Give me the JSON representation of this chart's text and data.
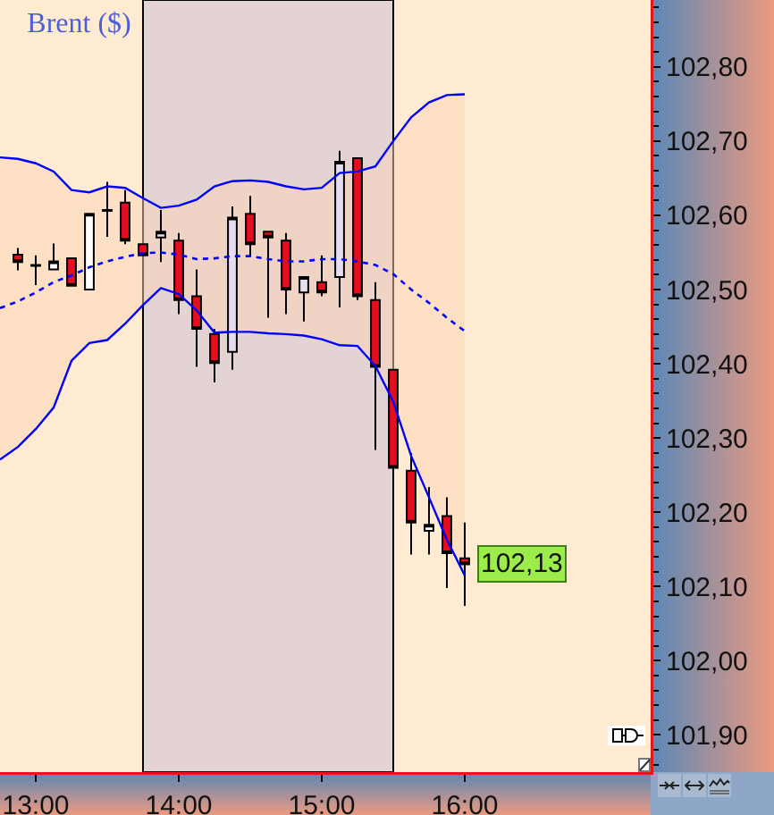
{
  "chart_data": {
    "type": "candlestick",
    "title": "Brent ($)",
    "x": [
      12.875,
      13.0,
      13.125,
      13.25,
      13.375,
      13.5,
      13.625,
      13.75,
      13.875,
      14.0,
      14.125,
      14.25,
      14.375,
      14.5,
      14.625,
      14.75,
      14.875,
      15.0,
      15.125,
      15.25,
      15.375,
      15.5,
      15.625,
      15.75,
      15.875,
      16.0
    ],
    "ohlc": [
      [
        102.547,
        102.556,
        102.526,
        102.537
      ],
      [
        102.532,
        102.546,
        102.506,
        102.533
      ],
      [
        102.527,
        102.562,
        102.527,
        102.538
      ],
      [
        102.542,
        102.542,
        102.505,
        102.505
      ],
      [
        102.5,
        102.602,
        102.5,
        102.602
      ],
      [
        102.606,
        102.645,
        102.571,
        102.607
      ],
      [
        102.617,
        102.634,
        102.561,
        102.566
      ],
      [
        102.561,
        102.561,
        102.546,
        102.546
      ],
      [
        102.57,
        102.607,
        102.537,
        102.578
      ],
      [
        102.566,
        102.576,
        102.467,
        102.486
      ],
      [
        102.491,
        102.527,
        102.396,
        102.447
      ],
      [
        102.44,
        102.447,
        102.375,
        102.401
      ],
      [
        102.416,
        102.612,
        102.392,
        102.597
      ],
      [
        102.602,
        102.626,
        102.544,
        102.561
      ],
      [
        102.578,
        102.578,
        102.462,
        102.57
      ],
      [
        102.566,
        102.576,
        102.467,
        102.5
      ],
      [
        102.496,
        102.517,
        102.457,
        102.517
      ],
      [
        102.51,
        102.546,
        102.491,
        102.496
      ],
      [
        102.517,
        102.687,
        102.476,
        102.672
      ],
      [
        102.677,
        102.677,
        102.486,
        102.491
      ],
      [
        102.486,
        102.51,
        102.284,
        102.396
      ],
      [
        102.392,
        102.392,
        102.256,
        102.26
      ],
      [
        102.256,
        102.28,
        102.143,
        102.186
      ],
      [
        102.175,
        102.234,
        102.143,
        102.183
      ],
      [
        102.195,
        102.22,
        102.098,
        102.145
      ],
      [
        102.138,
        102.186,
        102.074,
        102.13
      ]
    ],
    "colors": [
      "#e60e1e",
      "#000000",
      "#ffffff",
      "#e60e1e",
      "#ffffff",
      "#000000",
      "#e60e1e",
      "#e60e1e",
      "#e6def0",
      "#e60e1e",
      "#e60e1e",
      "#e60e1e",
      "#e6def0",
      "#e60e1e",
      "#e60e1e",
      "#e60e1e",
      "#e6def0",
      "#e60e1e",
      "#e6def0",
      "#e60e1e",
      "#e60e1e",
      "#e60e1e",
      "#e60e1e",
      "#ffffff",
      "#e60e1e",
      "#e60e1e"
    ],
    "series": [
      {
        "type": "line",
        "color": "#0000ff",
        "line_style": "dotted",
        "x": [
          12.75,
          12.875,
          13.0,
          13.125,
          13.25,
          13.375,
          13.5,
          13.625,
          13.75,
          13.875,
          14.0,
          14.125,
          14.25,
          14.375,
          14.5,
          14.625,
          14.75,
          14.875,
          15.0,
          15.125,
          15.25,
          15.375,
          15.5,
          15.625,
          15.75,
          15.875,
          16.0
        ],
        "values": [
          102.475,
          102.484,
          102.496,
          102.51,
          102.519,
          102.53,
          102.538,
          102.544,
          102.549,
          102.55,
          102.547,
          102.541,
          102.542,
          102.545,
          102.545,
          102.541,
          102.538,
          102.538,
          102.541,
          102.541,
          102.538,
          102.533,
          102.521,
          102.5,
          102.482,
          102.462,
          102.444
        ],
        "upper": [
          102.678,
          102.676,
          102.67,
          102.659,
          102.634,
          102.631,
          102.639,
          102.637,
          102.623,
          102.61,
          102.613,
          102.621,
          102.639,
          102.646,
          102.647,
          102.645,
          102.639,
          102.635,
          102.637,
          102.657,
          102.659,
          102.666,
          102.7,
          102.732,
          102.752,
          102.762,
          102.763
        ],
        "lower": [
          102.271,
          102.288,
          102.312,
          102.341,
          102.404,
          102.428,
          102.432,
          102.454,
          102.479,
          102.502,
          102.494,
          102.472,
          102.442,
          102.443,
          102.443,
          102.441,
          102.44,
          102.438,
          102.433,
          102.425,
          102.424,
          102.397,
          102.349,
          102.276,
          102.22,
          102.163,
          102.115
        ]
      },
      {
        "type": "line",
        "color": "#0000ff",
        "line_style": "solid",
        "x": [
          12.75,
          12.875,
          13.0,
          13.125,
          13.25,
          13.375,
          13.5,
          13.625,
          13.75,
          13.875,
          14.0,
          14.125,
          14.25,
          14.375,
          14.5,
          14.625,
          14.75,
          14.875,
          15.0,
          15.125,
          15.25,
          15.375,
          15.5,
          15.625,
          15.75,
          15.875,
          16.0
        ],
        "values": [
          102.678,
          102.676,
          102.67,
          102.659,
          102.634,
          102.631,
          102.639,
          102.637,
          102.623,
          102.61,
          102.613,
          102.621,
          102.639,
          102.646,
          102.647,
          102.645,
          102.639,
          102.635,
          102.637,
          102.657,
          102.659,
          102.666,
          102.7,
          102.732,
          102.752,
          102.762,
          102.763
        ]
      },
      {
        "type": "line",
        "color": "#0000ff",
        "line_style": "solid",
        "x": [
          12.75,
          12.875,
          13.0,
          13.125,
          13.25,
          13.375,
          13.5,
          13.625,
          13.75,
          13.875,
          14.0,
          14.125,
          14.25,
          14.375,
          14.5,
          14.625,
          14.75,
          14.875,
          15.0,
          15.125,
          15.25,
          15.375,
          15.5,
          15.625,
          15.75,
          15.875,
          16.0
        ],
        "values": [
          102.271,
          102.288,
          102.312,
          102.341,
          102.404,
          102.428,
          102.432,
          102.454,
          102.479,
          102.502,
          102.494,
          102.472,
          102.442,
          102.443,
          102.443,
          102.441,
          102.44,
          102.438,
          102.433,
          102.425,
          102.424,
          102.397,
          102.349,
          102.276,
          102.22,
          102.163,
          102.115
        ]
      }
    ],
    "xlim": [
      12.75,
      17.3
    ],
    "xticks": [
      {
        "value": 13,
        "label": "13:00"
      },
      {
        "value": 14,
        "label": "14:00"
      },
      {
        "value": 15,
        "label": "15:00"
      },
      {
        "value": 16,
        "label": "16:00"
      }
    ],
    "ylim": [
      101.85,
      102.89
    ],
    "yticks": [
      {
        "value": 101.86,
        "label": null
      },
      {
        "value": 101.88,
        "label": null
      },
      {
        "value": 101.9,
        "label": "101,90"
      },
      {
        "value": 101.92,
        "label": null
      },
      {
        "value": 101.94,
        "label": null
      },
      {
        "value": 101.96,
        "label": null
      },
      {
        "value": 101.98,
        "label": null
      },
      {
        "value": 102.0,
        "label": "102,00"
      },
      {
        "value": 102.02,
        "label": null
      },
      {
        "value": 102.04,
        "label": null
      },
      {
        "value": 102.06,
        "label": null
      },
      {
        "value": 102.08,
        "label": null
      },
      {
        "value": 102.1,
        "label": "102,10"
      },
      {
        "value": 102.12,
        "label": null
      },
      {
        "value": 102.14,
        "label": null
      },
      {
        "value": 102.16,
        "label": null
      },
      {
        "value": 102.18,
        "label": null
      },
      {
        "value": 102.2,
        "label": "102,20"
      },
      {
        "value": 102.22,
        "label": null
      },
      {
        "value": 102.24,
        "label": null
      },
      {
        "value": 102.26,
        "label": null
      },
      {
        "value": 102.28,
        "label": null
      },
      {
        "value": 102.3,
        "label": "102,30"
      },
      {
        "value": 102.32,
        "label": null
      },
      {
        "value": 102.34,
        "label": null
      },
      {
        "value": 102.36,
        "label": null
      },
      {
        "value": 102.38,
        "label": null
      },
      {
        "value": 102.4,
        "label": "102,40"
      },
      {
        "value": 102.42,
        "label": null
      },
      {
        "value": 102.44,
        "label": null
      },
      {
        "value": 102.46,
        "label": null
      },
      {
        "value": 102.48,
        "label": null
      },
      {
        "value": 102.5,
        "label": "102,50"
      },
      {
        "value": 102.52,
        "label": null
      },
      {
        "value": 102.54,
        "label": null
      },
      {
        "value": 102.56,
        "label": null
      },
      {
        "value": 102.58,
        "label": null
      },
      {
        "value": 102.6,
        "label": "102,60"
      },
      {
        "value": 102.62,
        "label": null
      },
      {
        "value": 102.64,
        "label": null
      },
      {
        "value": 102.66,
        "label": null
      },
      {
        "value": 102.68,
        "label": null
      },
      {
        "value": 102.7,
        "label": "102,70"
      },
      {
        "value": 102.72,
        "label": null
      },
      {
        "value": 102.74,
        "label": null
      },
      {
        "value": 102.76,
        "label": null
      },
      {
        "value": 102.78,
        "label": null
      },
      {
        "value": 102.8,
        "label": "102,80"
      },
      {
        "value": 102.82,
        "label": null
      },
      {
        "value": 102.84,
        "label": null
      },
      {
        "value": 102.86,
        "label": null
      },
      {
        "value": 102.88,
        "label": null
      }
    ],
    "bands": [
      {
        "axis": "x",
        "from": 13.75,
        "to": 15.5,
        "color": "#e3d4d3"
      }
    ],
    "annotations": [
      {
        "text": "102,13",
        "x": 16.0,
        "y": 102.13
      }
    ]
  }
}
